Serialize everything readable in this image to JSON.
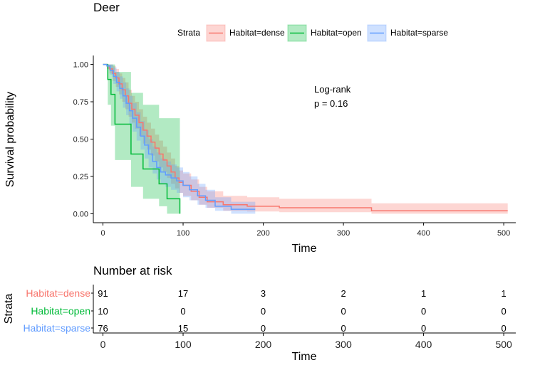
{
  "chart_data": {
    "type": "line",
    "title": "Deer",
    "xlabel": "Time",
    "ylabel": "Survival probability",
    "xlim": [
      -12,
      515
    ],
    "ylim": [
      -0.06,
      1.06
    ],
    "x_ticks": [
      "0",
      "100",
      "200",
      "300",
      "400",
      "500"
    ],
    "x_tick_values": [
      0,
      100,
      200,
      300,
      400,
      500
    ],
    "y_ticks": [
      "0.00",
      "0.25",
      "0.50",
      "0.75",
      "1.00"
    ],
    "y_tick_values": [
      0,
      0.25,
      0.5,
      0.75,
      1.0
    ],
    "legend": {
      "title": "Strata",
      "position": "top",
      "entries": [
        "Habitat=dense",
        "Habitat=open",
        "Habitat=sparse"
      ]
    },
    "annotation": {
      "line1": "Log-rank",
      "line2": "p = 0.16"
    },
    "series": [
      {
        "name": "Habitat=dense",
        "color": "#F8766D",
        "band_color": "#F8766D",
        "steps": [
          [
            0,
            1.0
          ],
          [
            5,
            0.99
          ],
          [
            8,
            0.97
          ],
          [
            12,
            0.94
          ],
          [
            16,
            0.91
          ],
          [
            20,
            0.87
          ],
          [
            24,
            0.83
          ],
          [
            28,
            0.79
          ],
          [
            32,
            0.74
          ],
          [
            36,
            0.7
          ],
          [
            40,
            0.66
          ],
          [
            45,
            0.61
          ],
          [
            50,
            0.56
          ],
          [
            55,
            0.52
          ],
          [
            60,
            0.48
          ],
          [
            65,
            0.44
          ],
          [
            70,
            0.4
          ],
          [
            75,
            0.36
          ],
          [
            80,
            0.32
          ],
          [
            85,
            0.28
          ],
          [
            90,
            0.24
          ],
          [
            95,
            0.21
          ],
          [
            100,
            0.19
          ],
          [
            110,
            0.15
          ],
          [
            120,
            0.11
          ],
          [
            130,
            0.08
          ],
          [
            150,
            0.06
          ],
          [
            180,
            0.05
          ],
          [
            220,
            0.04
          ],
          [
            335,
            0.02
          ],
          [
            505,
            0.02
          ]
        ],
        "lower": [
          [
            0,
            1.0
          ],
          [
            5,
            0.97
          ],
          [
            8,
            0.94
          ],
          [
            12,
            0.89
          ],
          [
            16,
            0.85
          ],
          [
            20,
            0.8
          ],
          [
            24,
            0.75
          ],
          [
            28,
            0.7
          ],
          [
            32,
            0.65
          ],
          [
            36,
            0.61
          ],
          [
            40,
            0.57
          ],
          [
            45,
            0.52
          ],
          [
            50,
            0.47
          ],
          [
            55,
            0.43
          ],
          [
            60,
            0.39
          ],
          [
            65,
            0.35
          ],
          [
            70,
            0.31
          ],
          [
            75,
            0.28
          ],
          [
            80,
            0.24
          ],
          [
            85,
            0.2
          ],
          [
            90,
            0.17
          ],
          [
            95,
            0.14
          ],
          [
            100,
            0.12
          ],
          [
            110,
            0.09
          ],
          [
            120,
            0.06
          ],
          [
            130,
            0.04
          ],
          [
            150,
            0.02
          ],
          [
            180,
            0.015
          ],
          [
            220,
            0.01
          ],
          [
            335,
            0.0
          ],
          [
            505,
            0.0
          ]
        ],
        "upper": [
          [
            0,
            1.0
          ],
          [
            5,
            1.0
          ],
          [
            8,
            1.0
          ],
          [
            12,
            0.99
          ],
          [
            16,
            0.97
          ],
          [
            20,
            0.94
          ],
          [
            24,
            0.91
          ],
          [
            28,
            0.88
          ],
          [
            32,
            0.83
          ],
          [
            36,
            0.79
          ],
          [
            40,
            0.75
          ],
          [
            45,
            0.7
          ],
          [
            50,
            0.65
          ],
          [
            55,
            0.61
          ],
          [
            60,
            0.57
          ],
          [
            65,
            0.53
          ],
          [
            70,
            0.49
          ],
          [
            75,
            0.45
          ],
          [
            80,
            0.41
          ],
          [
            85,
            0.37
          ],
          [
            90,
            0.32
          ],
          [
            95,
            0.29
          ],
          [
            100,
            0.27
          ],
          [
            110,
            0.23
          ],
          [
            120,
            0.18
          ],
          [
            130,
            0.15
          ],
          [
            150,
            0.12
          ],
          [
            180,
            0.11
          ],
          [
            220,
            0.1
          ],
          [
            335,
            0.07
          ],
          [
            505,
            0.07
          ]
        ]
      },
      {
        "name": "Habitat=open",
        "color": "#00BA38",
        "band_color": "#00BA38",
        "steps": [
          [
            0,
            1.0
          ],
          [
            6,
            0.9
          ],
          [
            10,
            0.8
          ],
          [
            15,
            0.6
          ],
          [
            20,
            0.6
          ],
          [
            35,
            0.4
          ],
          [
            50,
            0.3
          ],
          [
            70,
            0.2
          ],
          [
            80,
            0.1
          ],
          [
            96,
            0.0
          ]
        ],
        "lower": [
          [
            0,
            1.0
          ],
          [
            6,
            0.73
          ],
          [
            10,
            0.59
          ],
          [
            15,
            0.36
          ],
          [
            20,
            0.36
          ],
          [
            35,
            0.18
          ],
          [
            50,
            0.1
          ],
          [
            70,
            0.05
          ],
          [
            80,
            0.0
          ],
          [
            96,
            0.0
          ]
        ],
        "upper": [
          [
            0,
            1.0
          ],
          [
            6,
            1.0
          ],
          [
            10,
            1.0
          ],
          [
            15,
            0.95
          ],
          [
            20,
            0.95
          ],
          [
            35,
            0.81
          ],
          [
            50,
            0.73
          ],
          [
            70,
            0.64
          ],
          [
            80,
            0.64
          ],
          [
            96,
            0.64
          ]
        ]
      },
      {
        "name": "Habitat=sparse",
        "color": "#619CFF",
        "band_color": "#619CFF",
        "steps": [
          [
            0,
            1.0
          ],
          [
            5,
            0.99
          ],
          [
            9,
            0.96
          ],
          [
            13,
            0.92
          ],
          [
            17,
            0.88
          ],
          [
            21,
            0.84
          ],
          [
            25,
            0.79
          ],
          [
            29,
            0.74
          ],
          [
            33,
            0.69
          ],
          [
            37,
            0.64
          ],
          [
            42,
            0.58
          ],
          [
            47,
            0.52
          ],
          [
            52,
            0.46
          ],
          [
            57,
            0.4
          ],
          [
            62,
            0.35
          ],
          [
            67,
            0.31
          ],
          [
            72,
            0.28
          ],
          [
            78,
            0.26
          ],
          [
            85,
            0.24
          ],
          [
            92,
            0.22
          ],
          [
            100,
            0.19
          ],
          [
            108,
            0.16
          ],
          [
            118,
            0.12
          ],
          [
            128,
            0.09
          ],
          [
            140,
            0.05
          ],
          [
            160,
            0.03
          ],
          [
            190,
            0.03
          ]
        ],
        "lower": [
          [
            0,
            1.0
          ],
          [
            5,
            0.97
          ],
          [
            9,
            0.93
          ],
          [
            13,
            0.87
          ],
          [
            17,
            0.82
          ],
          [
            21,
            0.77
          ],
          [
            25,
            0.71
          ],
          [
            29,
            0.66
          ],
          [
            33,
            0.6
          ],
          [
            37,
            0.55
          ],
          [
            42,
            0.49
          ],
          [
            47,
            0.43
          ],
          [
            52,
            0.37
          ],
          [
            57,
            0.31
          ],
          [
            62,
            0.27
          ],
          [
            67,
            0.23
          ],
          [
            72,
            0.2
          ],
          [
            78,
            0.18
          ],
          [
            85,
            0.16
          ],
          [
            92,
            0.14
          ],
          [
            100,
            0.11
          ],
          [
            108,
            0.09
          ],
          [
            118,
            0.06
          ],
          [
            128,
            0.04
          ],
          [
            140,
            0.02
          ],
          [
            160,
            0.0
          ],
          [
            190,
            0.0
          ]
        ],
        "upper": [
          [
            0,
            1.0
          ],
          [
            5,
            1.0
          ],
          [
            9,
            1.0
          ],
          [
            13,
            0.98
          ],
          [
            17,
            0.95
          ],
          [
            21,
            0.92
          ],
          [
            25,
            0.88
          ],
          [
            29,
            0.84
          ],
          [
            33,
            0.79
          ],
          [
            37,
            0.74
          ],
          [
            42,
            0.68
          ],
          [
            47,
            0.62
          ],
          [
            52,
            0.56
          ],
          [
            57,
            0.5
          ],
          [
            62,
            0.45
          ],
          [
            67,
            0.41
          ],
          [
            72,
            0.37
          ],
          [
            78,
            0.35
          ],
          [
            85,
            0.33
          ],
          [
            92,
            0.31
          ],
          [
            100,
            0.28
          ],
          [
            108,
            0.25
          ],
          [
            118,
            0.2
          ],
          [
            128,
            0.16
          ],
          [
            140,
            0.11
          ],
          [
            160,
            0.08
          ],
          [
            190,
            0.08
          ]
        ]
      }
    ],
    "risk_table": {
      "title": "Number at risk",
      "ylabel": "Strata",
      "xlabel": "Time",
      "time_points": [
        0,
        100,
        200,
        300,
        400,
        500
      ],
      "rows": [
        {
          "label": "Habitat=dense",
          "color": "#F8766D",
          "counts": [
            "91",
            "17",
            "3",
            "2",
            "1",
            "1"
          ]
        },
        {
          "label": "Habitat=open",
          "color": "#00BA38",
          "counts": [
            "10",
            "0",
            "0",
            "0",
            "0",
            "0"
          ]
        },
        {
          "label": "Habitat=sparse",
          "color": "#619CFF",
          "counts": [
            "76",
            "15",
            "0",
            "0",
            "0",
            "0"
          ]
        }
      ]
    }
  }
}
